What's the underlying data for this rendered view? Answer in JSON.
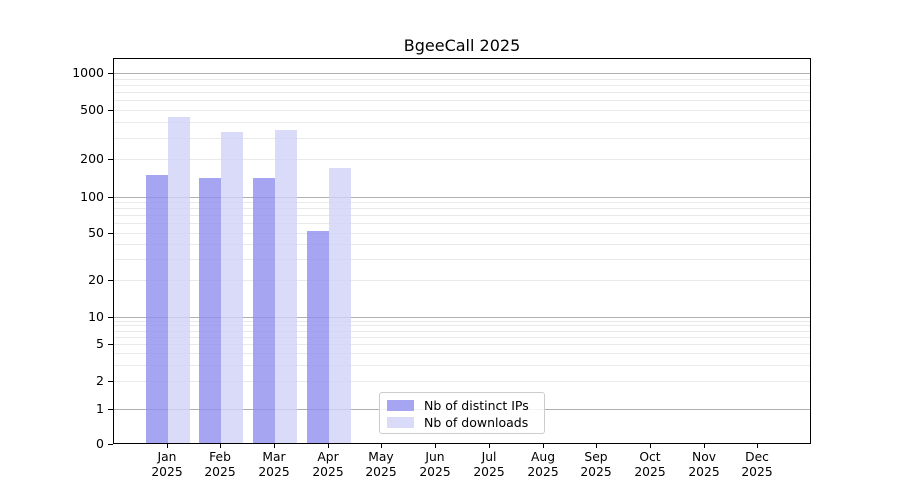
{
  "figure": {
    "title": "BgeeCall 2025",
    "background_color": "#ffffff"
  },
  "chart_data": {
    "type": "bar",
    "title": "BgeeCall 2025",
    "categories": [
      "Jan\n2025",
      "Feb\n2025",
      "Mar\n2025",
      "Apr\n2025",
      "May\n2025",
      "Jun\n2025",
      "Jul\n2025",
      "Aug\n2025",
      "Sep\n2025",
      "Oct\n2025",
      "Nov\n2025",
      "Dec\n2025"
    ],
    "series": [
      {
        "name": "Nb of distinct IPs",
        "color": "#a5a5f2",
        "values": [
          150,
          140,
          140,
          52,
          0,
          0,
          0,
          0,
          0,
          0,
          0,
          0
        ]
      },
      {
        "name": "Nb of downloads",
        "color": "#dadaf9",
        "values": [
          440,
          330,
          345,
          170,
          0,
          0,
          0,
          0,
          0,
          0,
          0,
          0
        ]
      }
    ],
    "xlabel": "",
    "ylabel": "",
    "yscale": "symlog",
    "ylim": [
      0,
      1300
    ],
    "yticks": [
      0,
      1,
      2,
      5,
      10,
      20,
      50,
      100,
      200,
      500,
      1000
    ],
    "grid": true,
    "grid_major_values": [
      1,
      10,
      100,
      1000
    ],
    "grid_major_color": "#b0b0b0",
    "grid_minor_color": "#e9e9e9",
    "legend_position": "lower center",
    "legend_border_color": "#cccccc"
  }
}
